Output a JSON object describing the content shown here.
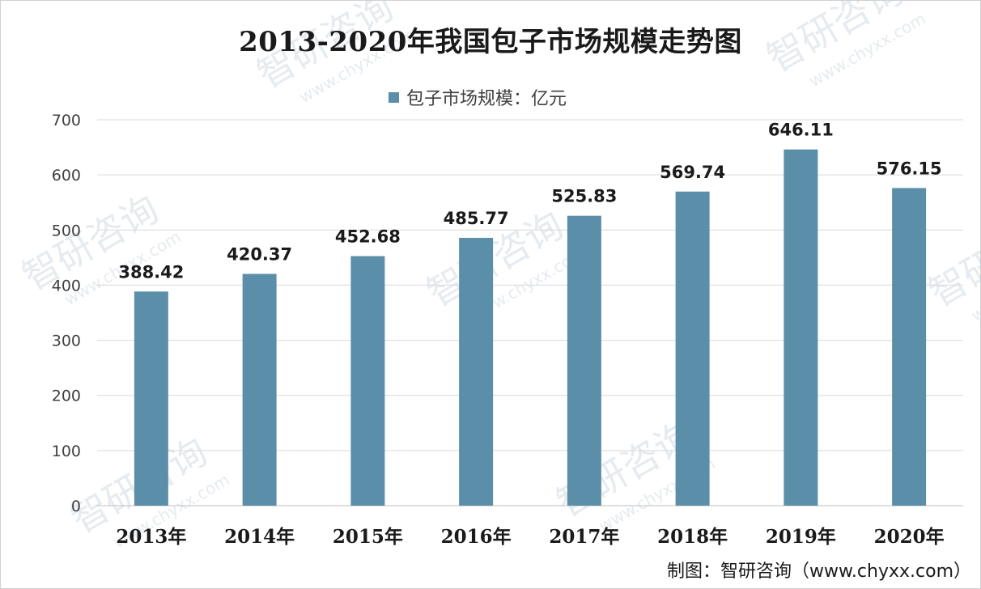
{
  "chart_data": {
    "type": "bar",
    "title": "2013-2020年我国包子市场规模走势图",
    "categories": [
      "2013年",
      "2014年",
      "2015年",
      "2016年",
      "2017年",
      "2018年",
      "2019年",
      "2020年"
    ],
    "series": [
      {
        "name": "包子市场规模：亿元",
        "values": [
          388.42,
          420.37,
          452.68,
          485.77,
          525.83,
          569.74,
          646.11,
          576.15
        ],
        "labels": [
          "388.42",
          "420.37",
          "452.68",
          "485.77",
          "525.83",
          "569.74",
          "646.11",
          "576.15"
        ]
      }
    ],
    "ylim": [
      0,
      700
    ],
    "yticks": [
      0,
      100,
      200,
      300,
      400,
      500,
      600,
      700
    ],
    "grid": true,
    "legend_position": "top-center",
    "bar_color": "#5b8fa9"
  },
  "watermark": {
    "text": "智研咨询",
    "url": "www.chyxx.com"
  },
  "source_note": "制图：智研咨询（www.chyxx.com）"
}
